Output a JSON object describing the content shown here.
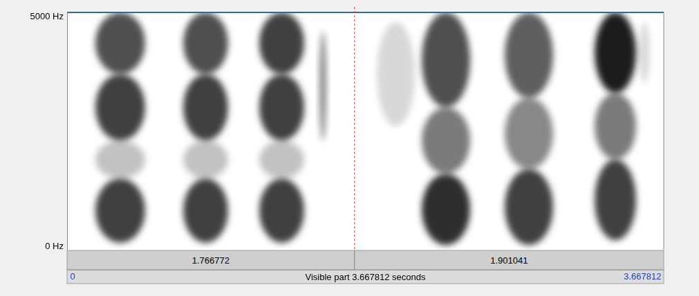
{
  "chart_data": {
    "type": "spectrogram",
    "xlim": [
      0,
      3.667812
    ],
    "xticks": [
      0,
      3.667812
    ],
    "ylim": [
      0,
      5000
    ],
    "yticks": [
      {
        "value": 5000,
        "label": "5000 Hz"
      },
      {
        "value": 0,
        "label": "0 Hz"
      }
    ],
    "cursor": 1.766772,
    "part_durations": [
      1.766772,
      1.901041
    ],
    "visible_part_label": "Visible part 3.667812 seconds",
    "segments": [
      {
        "start": 0.174,
        "end": 0.48,
        "bands": [
          {
            "low": 150,
            "high": 1500,
            "level": 0.8
          },
          {
            "low": 1500,
            "high": 2300,
            "level": 0.35
          },
          {
            "low": 2300,
            "high": 3700,
            "level": 0.8
          },
          {
            "low": 3700,
            "high": 5000,
            "level": 0.75
          }
        ]
      },
      {
        "start": 0.714,
        "end": 0.99,
        "bands": [
          {
            "low": 150,
            "high": 1500,
            "level": 0.8
          },
          {
            "low": 1500,
            "high": 2300,
            "level": 0.35
          },
          {
            "low": 2300,
            "high": 3700,
            "level": 0.8
          },
          {
            "low": 3700,
            "high": 5000,
            "level": 0.75
          }
        ]
      },
      {
        "start": 1.181,
        "end": 1.458,
        "bands": [
          {
            "low": 150,
            "high": 1500,
            "level": 0.8
          },
          {
            "low": 1500,
            "high": 2300,
            "level": 0.35
          },
          {
            "low": 2300,
            "high": 3700,
            "level": 0.8
          },
          {
            "low": 3700,
            "high": 5000,
            "level": 0.8
          }
        ]
      },
      {
        "start": 1.551,
        "end": 1.594,
        "bands": [
          {
            "low": 2300,
            "high": 4600,
            "level": 0.55
          }
        ]
      },
      {
        "start": 1.904,
        "end": 2.138,
        "bands": [
          {
            "low": 2600,
            "high": 4800,
            "level": 0.25
          }
        ]
      },
      {
        "start": 2.18,
        "end": 2.478,
        "bands": [
          {
            "low": 100,
            "high": 1600,
            "level": 0.85
          },
          {
            "low": 1600,
            "high": 3000,
            "level": 0.6
          },
          {
            "low": 3000,
            "high": 5000,
            "level": 0.75
          }
        ]
      },
      {
        "start": 2.69,
        "end": 2.988,
        "bands": [
          {
            "low": 100,
            "high": 1700,
            "level": 0.8
          },
          {
            "low": 1700,
            "high": 3200,
            "level": 0.55
          },
          {
            "low": 3200,
            "high": 5000,
            "level": 0.7
          }
        ]
      },
      {
        "start": 3.243,
        "end": 3.498,
        "bands": [
          {
            "low": 200,
            "high": 1900,
            "level": 0.8
          },
          {
            "low": 1900,
            "high": 3300,
            "level": 0.6
          },
          {
            "low": 3300,
            "high": 5000,
            "level": 0.9
          }
        ]
      },
      {
        "start": 3.52,
        "end": 3.58,
        "bands": [
          {
            "low": 3500,
            "high": 4800,
            "level": 0.25
          }
        ]
      }
    ]
  }
}
